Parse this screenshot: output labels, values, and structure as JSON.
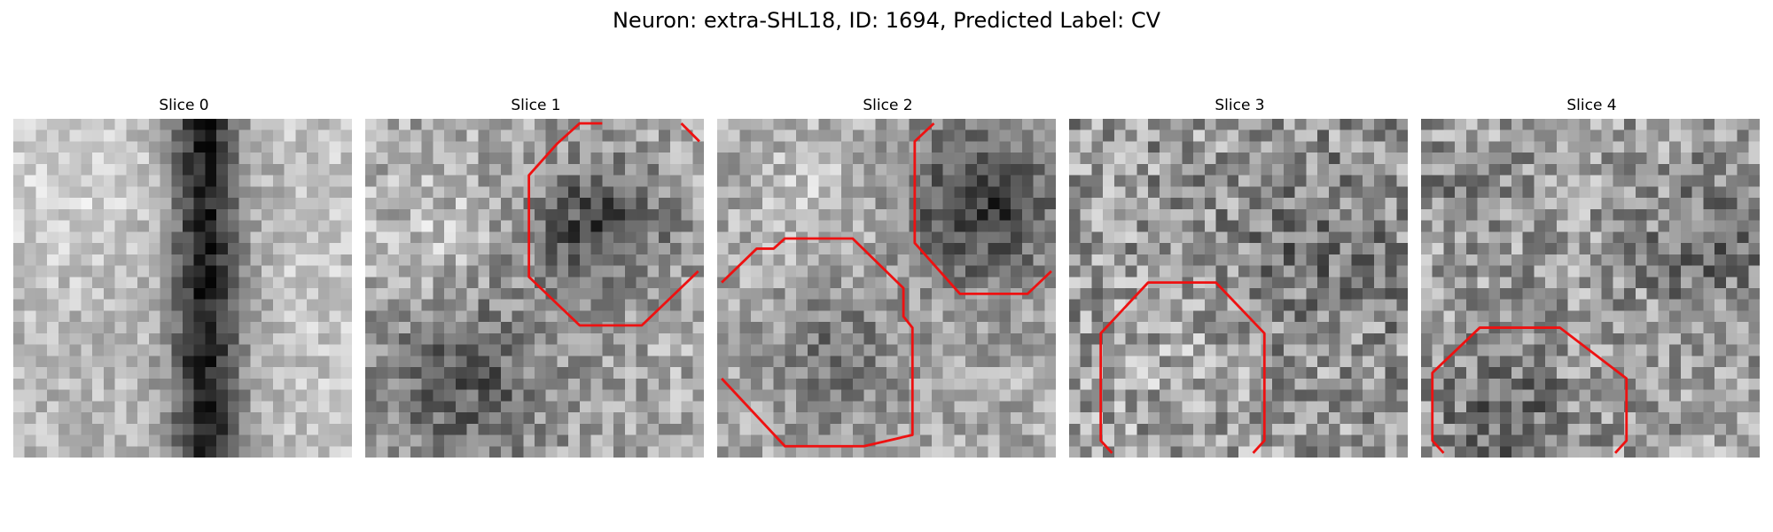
{
  "figure": {
    "title": "Neuron: extra-SHL18, ID: 1694, Predicted Label: CV"
  },
  "panels": [
    {
      "title": "Slice 0",
      "has_contour": false
    },
    {
      "title": "Slice 1",
      "has_contour": true
    },
    {
      "title": "Slice 2",
      "has_contour": true
    },
    {
      "title": "Slice 3",
      "has_contour": true
    },
    {
      "title": "Slice 4",
      "has_contour": true
    }
  ],
  "colors": {
    "contour": "#ee1111",
    "background": "#ffffff"
  }
}
